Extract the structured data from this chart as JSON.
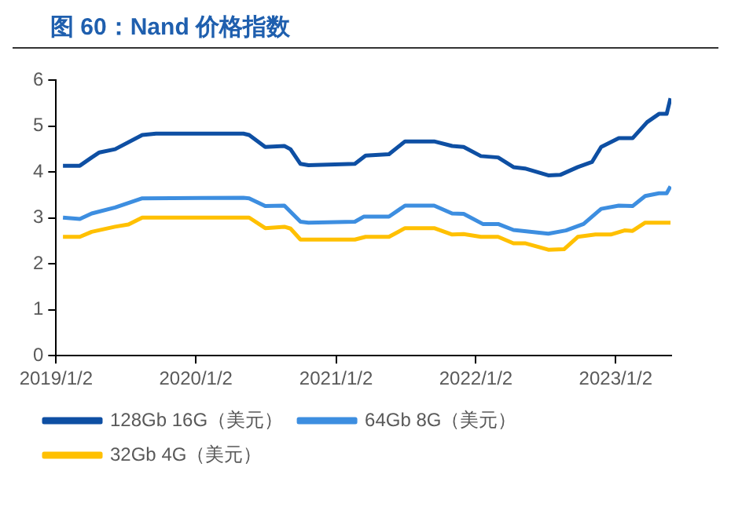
{
  "chart_data": {
    "type": "line",
    "title": "图 60：Nand 价格指数",
    "xlim": [
      "2019-01-02",
      "2023-05-27"
    ],
    "xticks": [
      {
        "value": "2019-01-02",
        "label": "2019/1/2"
      },
      {
        "value": "2020-01-02",
        "label": "2020/1/2"
      },
      {
        "value": "2021-01-02",
        "label": "2021/1/2"
      },
      {
        "value": "2022-01-02",
        "label": "2022/1/2"
      },
      {
        "value": "2023-01-02",
        "label": "2023/1/2"
      }
    ],
    "ylim": [
      0,
      6
    ],
    "yticks": [
      0,
      1,
      2,
      3,
      4,
      5,
      6
    ],
    "grid": false,
    "legend": "bottom",
    "marker": "none",
    "line_style": "solid",
    "series": [
      {
        "name": "128Gb 16G（美元）",
        "color": "#0e4fa3",
        "x": [
          "2019-01-20",
          "2019-03-05",
          "2019-04-05",
          "2019-04-25",
          "2019-06-05",
          "2019-08-15",
          "2019-09-20",
          "2020-05-05",
          "2020-05-20",
          "2020-07-01",
          "2020-08-20",
          "2020-09-05",
          "2020-10-01",
          "2020-10-22",
          "2021-02-20",
          "2021-03-20",
          "2021-05-20",
          "2021-07-01",
          "2021-09-15",
          "2021-11-01",
          "2021-12-01",
          "2022-01-15",
          "2022-03-01",
          "2022-04-10",
          "2022-05-10",
          "2022-07-10",
          "2022-08-10",
          "2022-09-25",
          "2022-11-01",
          "2022-11-25",
          "2023-01-10",
          "2023-02-15",
          "2023-03-25",
          "2023-04-25",
          "2023-05-15",
          "2023-05-25"
        ],
        "values": [
          4.14,
          4.14,
          4.32,
          4.43,
          4.5,
          4.81,
          4.84,
          4.84,
          4.81,
          4.55,
          4.57,
          4.5,
          4.18,
          4.15,
          4.18,
          4.36,
          4.39,
          4.67,
          4.67,
          4.57,
          4.55,
          4.35,
          4.32,
          4.11,
          4.08,
          3.93,
          3.94,
          4.11,
          4.22,
          4.55,
          4.74,
          4.74,
          5.09,
          5.27,
          5.27,
          5.61
        ]
      },
      {
        "name": "64Gb 8G（美元）",
        "color": "#3d8ee0",
        "x": [
          "2019-01-20",
          "2019-03-05",
          "2019-04-05",
          "2019-06-05",
          "2019-08-15",
          "2020-05-05",
          "2020-05-20",
          "2020-07-01",
          "2020-08-20",
          "2020-10-01",
          "2020-10-22",
          "2021-02-20",
          "2021-03-15",
          "2021-05-20",
          "2021-07-01",
          "2021-09-15",
          "2021-11-01",
          "2021-12-01",
          "2022-01-20",
          "2022-03-01",
          "2022-04-10",
          "2022-07-10",
          "2022-08-25",
          "2022-10-10",
          "2022-11-25",
          "2023-01-10",
          "2023-02-15",
          "2023-03-20",
          "2023-04-25",
          "2023-05-15",
          "2023-05-25"
        ],
        "values": [
          3.01,
          2.98,
          3.1,
          3.23,
          3.43,
          3.44,
          3.43,
          3.26,
          3.27,
          2.92,
          2.9,
          2.92,
          3.03,
          3.03,
          3.27,
          3.27,
          3.1,
          3.09,
          2.87,
          2.87,
          2.74,
          2.66,
          2.73,
          2.87,
          3.2,
          3.27,
          3.26,
          3.48,
          3.54,
          3.54,
          3.69
        ]
      },
      {
        "name": "32Gb 4G（美元）",
        "color": "#ffc000",
        "x": [
          "2019-01-20",
          "2019-03-05",
          "2019-04-05",
          "2019-06-05",
          "2019-07-10",
          "2019-08-15",
          "2020-05-05",
          "2020-05-20",
          "2020-07-01",
          "2020-08-20",
          "2020-09-05",
          "2020-10-01",
          "2020-10-22",
          "2021-02-20",
          "2021-03-20",
          "2021-05-20",
          "2021-07-01",
          "2021-09-15",
          "2021-11-01",
          "2021-12-01",
          "2022-01-15",
          "2022-03-01",
          "2022-04-10",
          "2022-05-10",
          "2022-07-10",
          "2022-08-20",
          "2022-09-25",
          "2022-11-10",
          "2022-12-20",
          "2023-01-25",
          "2023-02-15",
          "2023-03-20",
          "2023-05-25"
        ],
        "values": [
          2.59,
          2.59,
          2.7,
          2.81,
          2.86,
          3.01,
          3.01,
          3.01,
          2.78,
          2.81,
          2.77,
          2.53,
          2.53,
          2.53,
          2.59,
          2.59,
          2.78,
          2.78,
          2.64,
          2.65,
          2.59,
          2.59,
          2.45,
          2.45,
          2.31,
          2.32,
          2.59,
          2.64,
          2.64,
          2.73,
          2.72,
          2.9,
          2.9
        ]
      }
    ]
  }
}
